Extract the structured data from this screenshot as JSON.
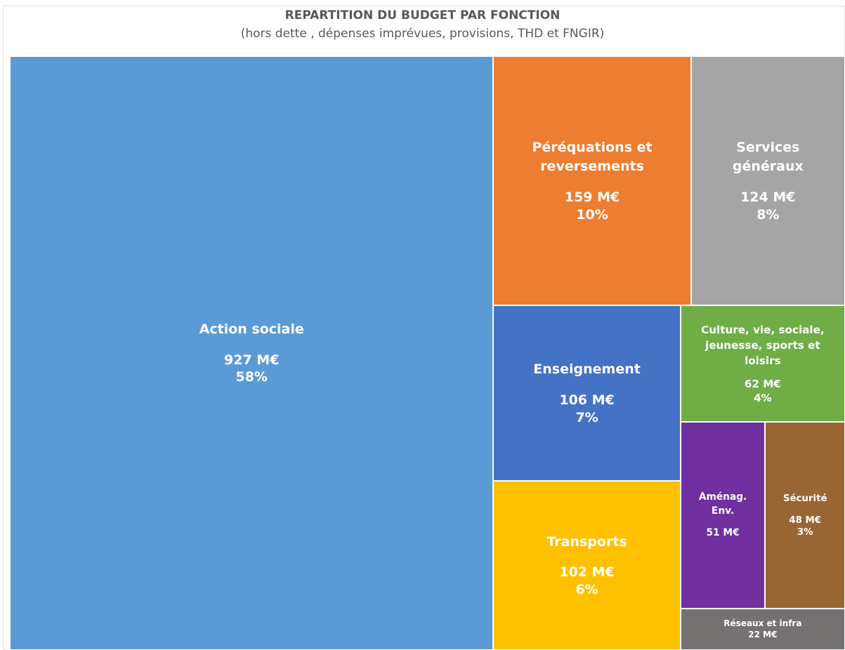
{
  "chart_data": {
    "type": "treemap",
    "title": "REPARTITION DU BUDGET PAR FONCTION",
    "subtitle": "(hors dette , dépenses imprévues, provisions, THD et FNGIR)",
    "categories": [
      "Action sociale",
      "Péréquations et reversements",
      "Services généraux",
      "Enseignement",
      "Transports",
      "Culture, vie, sociale, jeunesse, sports et loisirs",
      "Aménag. Env.",
      "Sécurité",
      "Réseaux et infra"
    ],
    "values": [
      927,
      159,
      124,
      106,
      102,
      62,
      51,
      48,
      22
    ],
    "value_labels": [
      "927 M€",
      "159 M€",
      "124 M€",
      "106 M€",
      "102 M€",
      "62 M€",
      "51 M€",
      "48 M€",
      "22 M€"
    ],
    "shares": [
      58,
      10,
      8,
      7,
      6,
      4,
      null,
      3,
      null
    ],
    "share_labels": [
      "58%",
      "10%",
      "8%",
      "7%",
      "6%",
      "4%",
      null,
      "3%",
      null
    ],
    "colors": [
      "#5b9bd5",
      "#ed7d31",
      "#a5a5a5",
      "#4472c4",
      "#ffc000",
      "#70ad47",
      "#7030a0",
      "#996633",
      "#767171"
    ]
  }
}
